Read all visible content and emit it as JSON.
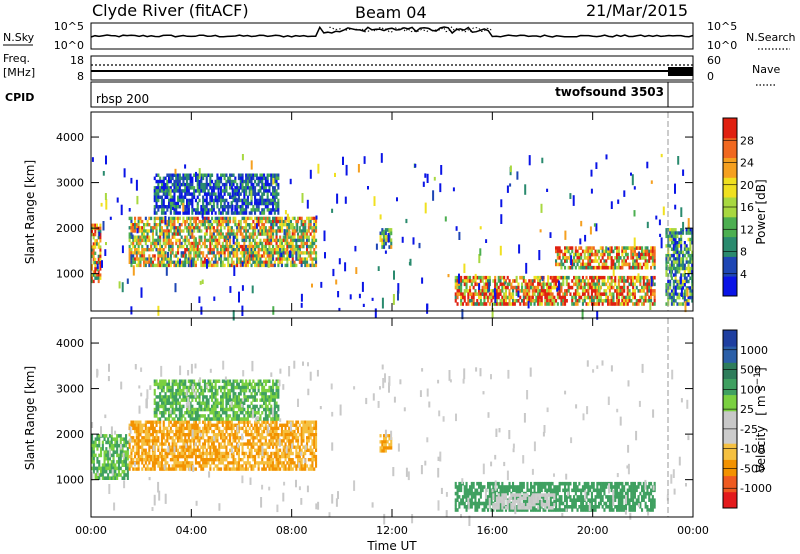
{
  "header": {
    "station": "Clyde River (fitACF)",
    "beam": "Beam 04",
    "date": "21/Mar/2015"
  },
  "nsky_panel": {
    "left_label": "N.Sky",
    "right_label": "N.Search",
    "y_ticks_left": [
      "10^5",
      "10^0"
    ],
    "y_ticks_right": [
      "10^5",
      "10^0"
    ]
  },
  "freq_panel": {
    "left_label_1": "Freq.",
    "left_label_2": "[MHz]",
    "right_label": "Nave",
    "y_ticks_left": [
      "18",
      "8"
    ],
    "y_ticks_right": [
      "60",
      "0"
    ]
  },
  "cpid_panel": {
    "label": "CPID",
    "segments": [
      {
        "name": "rbsp 200",
        "start_h": 0,
        "end_h": 22.9
      },
      {
        "name": "twofsound 3503",
        "start_h": 22.9,
        "end_h": 24
      }
    ]
  },
  "time_axis": {
    "title": "Time UT",
    "ticks": [
      "00:00",
      "04:00",
      "08:00",
      "12:00",
      "16:00",
      "20:00",
      "00:00"
    ]
  },
  "colors": {
    "power_scale": [
      "#0a14e6",
      "#1e46b4",
      "#2a8a6e",
      "#4caf50",
      "#a8d840",
      "#f0e020",
      "#f5a020",
      "#f06820",
      "#e02010"
    ],
    "velocity_scale": [
      "#e31a1c",
      "#f05a20",
      "#f39200",
      "#f5c040",
      "#cccccc",
      "#c8c8c8",
      "#7ad040",
      "#3fa060",
      "#2e7d5b",
      "#2b5fa8",
      "#1f3fa0"
    ]
  },
  "chart_data": [
    {
      "type": "heatmap",
      "title": "",
      "xlabel": "Time UT",
      "ylabel": "Slant Range [km]",
      "xlim_hours": [
        0,
        24
      ],
      "ylim_km": [
        180,
        4550
      ],
      "yticks": [
        1000,
        2000,
        3000,
        4000
      ],
      "colorbar": {
        "label": "Power [dB]",
        "ticks": [
          4,
          8,
          12,
          16,
          20,
          24,
          28
        ],
        "range": [
          0,
          32
        ]
      },
      "regions": [
        {
          "t0": 0.0,
          "t1": 0.4,
          "r0": 800,
          "r1": 2100,
          "value": 22
        },
        {
          "t0": 1.5,
          "t1": 9.0,
          "r0": 1150,
          "r1": 2250,
          "value": 18
        },
        {
          "t0": 2.5,
          "t1": 7.5,
          "r0": 2300,
          "r1": 3200,
          "value": 6
        },
        {
          "t0": 11.5,
          "t1": 12.0,
          "r0": 1550,
          "r1": 2000,
          "value": 14
        },
        {
          "t0": 14.5,
          "t1": 22.5,
          "r0": 300,
          "r1": 950,
          "value": 24
        },
        {
          "t0": 18.5,
          "t1": 22.5,
          "r0": 1100,
          "r1": 1600,
          "value": 22
        },
        {
          "t0": 22.9,
          "t1": 24.0,
          "r0": 300,
          "r1": 2000,
          "value": 10
        }
      ]
    },
    {
      "type": "heatmap",
      "title": "",
      "xlabel": "Time UT",
      "ylabel": "Slant Range [km]",
      "xlim_hours": [
        0,
        24
      ],
      "ylim_km": [
        180,
        4550
      ],
      "yticks": [
        1000,
        2000,
        3000,
        4000
      ],
      "colorbar": {
        "label": "Velocity [m s^-1]",
        "ticks": [
          "1000",
          "500",
          "100",
          "25",
          "-25",
          "-100",
          "-500",
          "-1000"
        ],
        "unit_label": "m s"
      },
      "regions": [
        {
          "t0": 0.0,
          "t1": 1.5,
          "r0": 1000,
          "r1": 2000,
          "value": 100
        },
        {
          "t0": 1.5,
          "t1": 9.0,
          "r0": 1200,
          "r1": 2300,
          "value": -100
        },
        {
          "t0": 2.5,
          "t1": 7.5,
          "r0": 2300,
          "r1": 3200,
          "value": 100
        },
        {
          "t0": 11.5,
          "t1": 12.0,
          "r0": 1600,
          "r1": 2000,
          "value": -100
        },
        {
          "t0": 14.5,
          "t1": 22.5,
          "r0": 300,
          "r1": 950,
          "value": 200
        },
        {
          "t0": 16.0,
          "t1": 18.5,
          "r0": 350,
          "r1": 700,
          "value": 0
        }
      ]
    }
  ]
}
